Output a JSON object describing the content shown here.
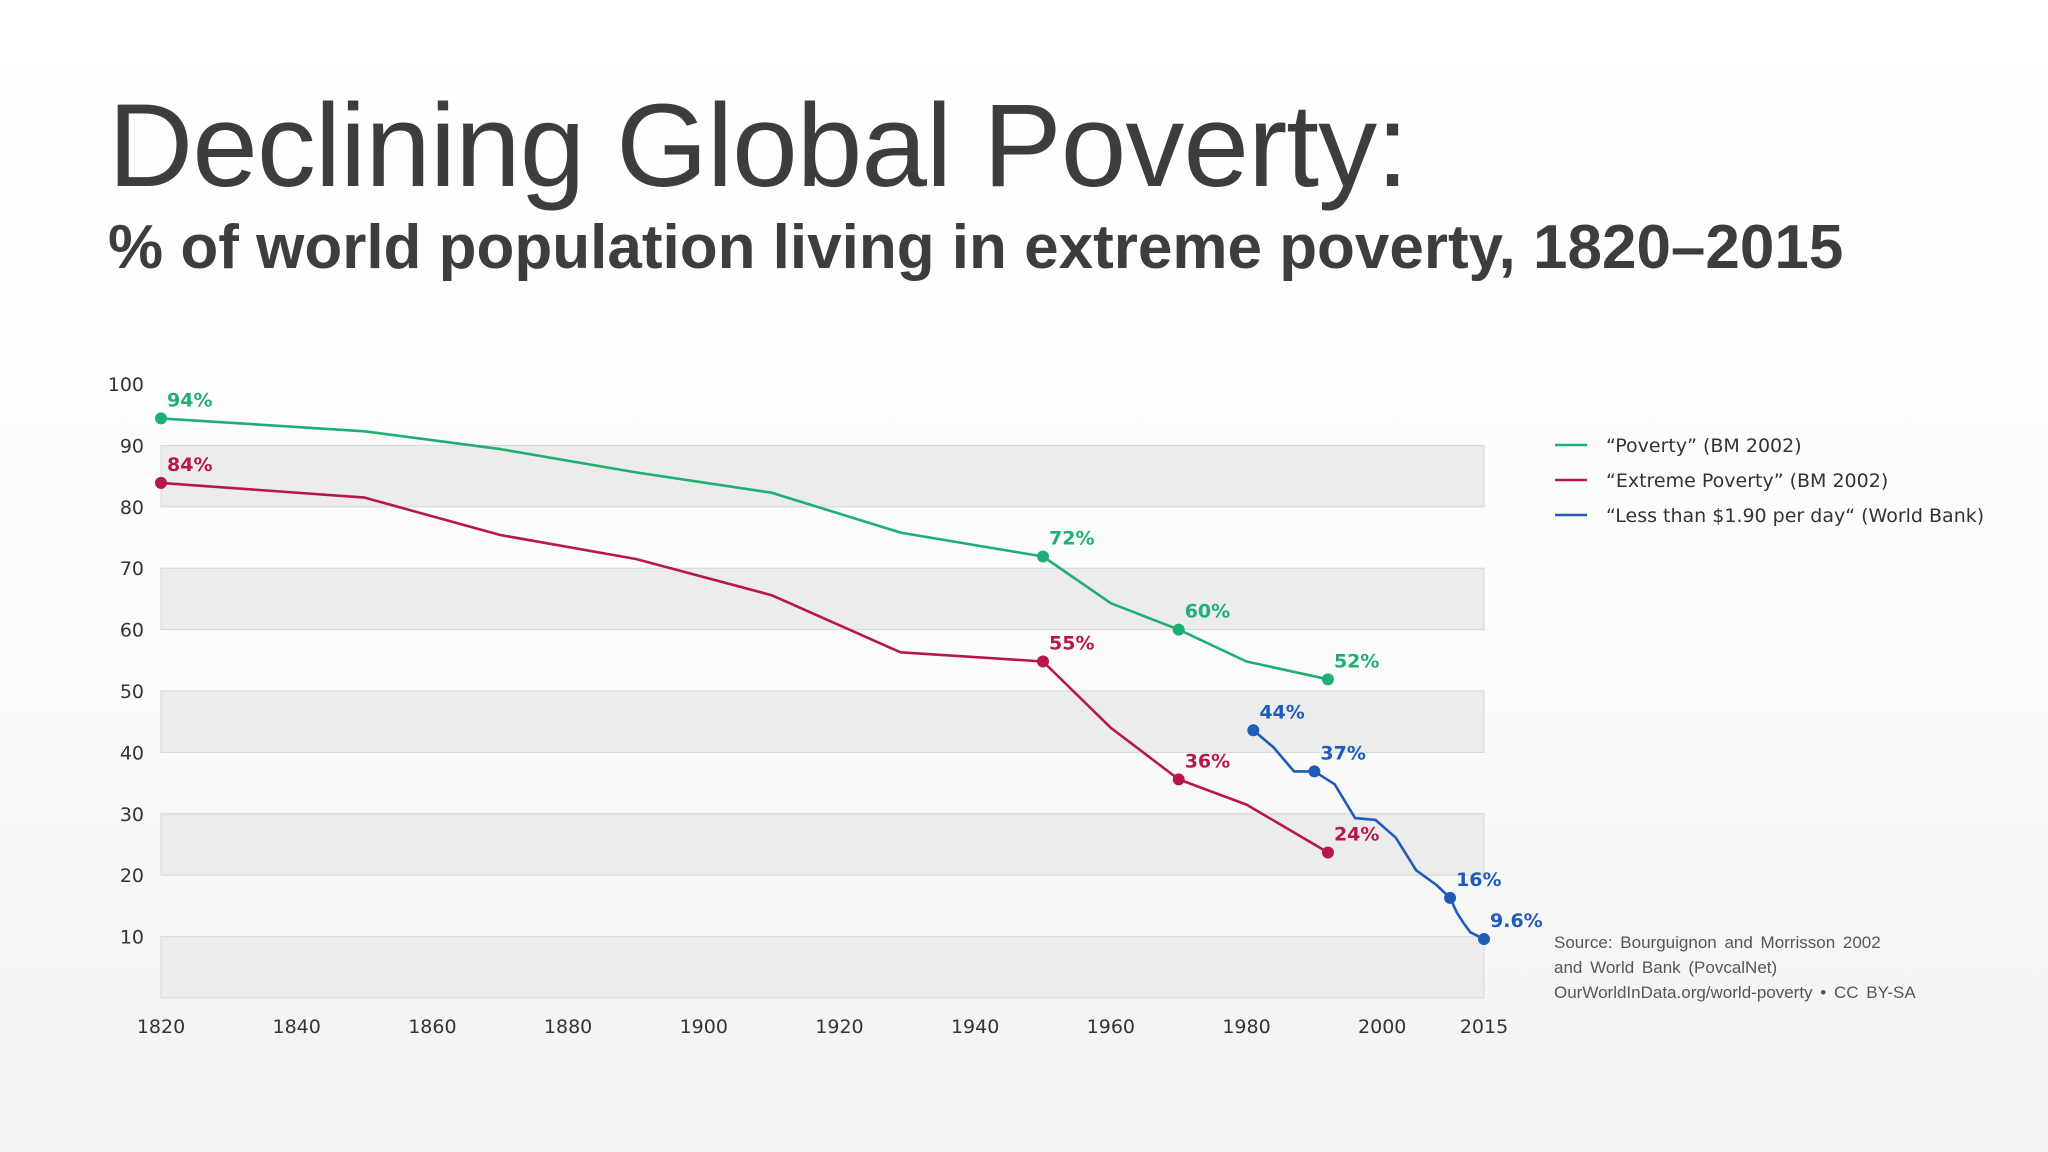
{
  "title": "Declining Global Poverty:",
  "subtitle": "% of world population living in extreme poverty, 1820–2015",
  "source": [
    "Source: Bourguignon and Morrisson 2002",
    "and World Bank (PovcalNet)",
    "OurWorldInData.org/world-poverty • CC BY-SA"
  ],
  "chart_data": {
    "type": "line",
    "xlim": [
      1820,
      2015
    ],
    "ylim": [
      0,
      100
    ],
    "xticks": [
      1820,
      1840,
      1860,
      1880,
      1900,
      1920,
      1940,
      1960,
      1980,
      2000,
      2015
    ],
    "yticks": [
      10,
      20,
      30,
      40,
      50,
      60,
      70,
      80,
      90,
      100
    ],
    "grid": "alternating horizontal bands",
    "legend_position": "right",
    "series": [
      {
        "name": "“Poverty” (BM 2002)",
        "color": "#1fae74",
        "points": [
          [
            1820,
            94.4
          ],
          [
            1850,
            92.3
          ],
          [
            1870,
            89.4
          ],
          [
            1890,
            85.6
          ],
          [
            1910,
            82.3
          ],
          [
            1929,
            75.8
          ],
          [
            1950,
            71.9
          ],
          [
            1960,
            64.3
          ],
          [
            1970,
            60
          ],
          [
            1980,
            54.8
          ],
          [
            1992,
            51.9
          ]
        ],
        "labeled_points": [
          {
            "x": 1820,
            "y": 94.4,
            "label": "94%"
          },
          {
            "x": 1950,
            "y": 71.9,
            "label": "72%"
          },
          {
            "x": 1970,
            "y": 60,
            "label": "60%"
          },
          {
            "x": 1992,
            "y": 51.9,
            "label": "52%"
          }
        ]
      },
      {
        "name": "“Extreme Poverty” (BM 2002)",
        "color": "#b8174e",
        "points": [
          [
            1820,
            83.9
          ],
          [
            1850,
            81.5
          ],
          [
            1870,
            75.4
          ],
          [
            1890,
            71.5
          ],
          [
            1910,
            65.6
          ],
          [
            1929,
            56.3
          ],
          [
            1950,
            54.8
          ],
          [
            1960,
            44
          ],
          [
            1970,
            35.6
          ],
          [
            1980,
            31.5
          ],
          [
            1992,
            23.7
          ]
        ],
        "labeled_points": [
          {
            "x": 1820,
            "y": 83.9,
            "label": "84%"
          },
          {
            "x": 1950,
            "y": 54.8,
            "label": "55%"
          },
          {
            "x": 1970,
            "y": 35.6,
            "label": "36%"
          },
          {
            "x": 1992,
            "y": 23.7,
            "label": "24%"
          }
        ]
      },
      {
        "name": "“Less than $1.90 per day“ (World Bank)",
        "color": "#1f5bbb",
        "points": [
          [
            1981,
            43.6
          ],
          [
            1984,
            40.8
          ],
          [
            1987,
            36.9
          ],
          [
            1990,
            36.9
          ],
          [
            1993,
            34.8
          ],
          [
            1996,
            29.3
          ],
          [
            1999,
            29
          ],
          [
            2002,
            26.1
          ],
          [
            2005,
            20.8
          ],
          [
            2008,
            18.4
          ],
          [
            2010,
            16.3
          ],
          [
            2011,
            13.9
          ],
          [
            2012,
            12.2
          ],
          [
            2013,
            10.7
          ],
          [
            2015,
            9.6
          ]
        ],
        "labeled_points": [
          {
            "x": 1981,
            "y": 43.6,
            "label": "44%"
          },
          {
            "x": 1990,
            "y": 36.9,
            "label": "37%"
          },
          {
            "x": 2010,
            "y": 16.3,
            "label": "16%"
          },
          {
            "x": 2015,
            "y": 9.6,
            "label": "9.6%"
          }
        ]
      }
    ]
  }
}
